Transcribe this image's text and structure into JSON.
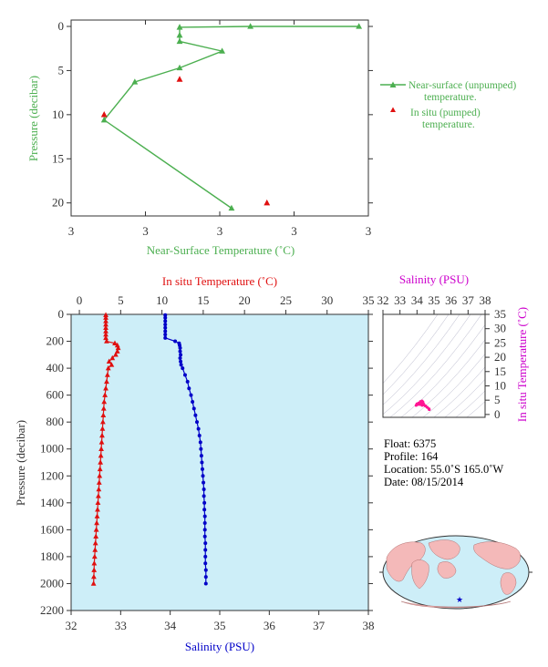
{
  "colors": {
    "green": "#4caf50",
    "red": "#e01010",
    "blue": "#0000c8",
    "magenta": "#cc00cc",
    "panel_fill": "#cdeef8",
    "axis": "#333333"
  },
  "chart_data": [
    {
      "type": "line",
      "title": "",
      "xlabel": "Near-Surface Temperature (˚C)",
      "ylabel": "Pressure (decibar)",
      "x_tick_labels": [
        "3",
        "3",
        "3",
        "3",
        "3"
      ],
      "y_tick_labels": [
        "0",
        "5",
        "10",
        "15",
        "20"
      ],
      "ylim": [
        0,
        22
      ],
      "y_inverted": true,
      "series": [
        {
          "name": "Near-surface (unpumped) temperature.",
          "style": "line-triangle",
          "color": "#4caf50",
          "x": [
            3.007,
            3.0024,
            2.9994,
            2.9994,
            2.9994,
            3.0012,
            2.9994,
            2.9975,
            2.9962,
            3.0016
          ],
          "y": [
            0.0,
            0.0,
            0.1,
            1.0,
            1.7,
            2.8,
            4.7,
            6.3,
            10.6,
            20.6
          ]
        },
        {
          "name": "In situ (pumped) temperature.",
          "style": "triangle",
          "color": "#e01010",
          "x": [
            2.9962,
            2.9994,
            3.0031
          ],
          "y": [
            10.0,
            6.0,
            20.0
          ]
        }
      ],
      "legend": "right"
    },
    {
      "type": "scatter",
      "title": "",
      "top_axis_label": "In situ Temperature (˚C)",
      "bottom_axis_label": "Salinity (PSU)",
      "ylabel": "Pressure (decibar)",
      "temperature_ticks": [
        "0",
        "5",
        "10",
        "15",
        "20",
        "25",
        "30",
        "35"
      ],
      "salinity_ticks": [
        "32",
        "33",
        "34",
        "35",
        "36",
        "37",
        "38"
      ],
      "pressure_ticks": [
        "0",
        "200",
        "400",
        "600",
        "800",
        "1000",
        "1200",
        "1400",
        "1600",
        "1800",
        "2000",
        "2200"
      ],
      "temperature_range": [
        -1,
        35
      ],
      "salinity_range": [
        32,
        38
      ],
      "pressure_range": [
        0,
        2200
      ],
      "y_inverted": true,
      "temperature_profile": {
        "pressure": [
          5,
          25,
          50,
          75,
          100,
          125,
          150,
          175,
          200,
          215,
          230,
          250,
          275,
          300,
          325,
          350,
          375,
          400,
          450,
          500,
          550,
          600,
          650,
          700,
          750,
          800,
          850,
          900,
          950,
          1000,
          1050,
          1100,
          1150,
          1200,
          1250,
          1300,
          1350,
          1400,
          1450,
          1500,
          1550,
          1600,
          1650,
          1700,
          1750,
          1800,
          1850,
          1900,
          1950,
          2000
        ],
        "temperature": [
          3.2,
          3.2,
          3.2,
          3.2,
          3.2,
          3.2,
          3.2,
          3.2,
          3.3,
          4.3,
          4.6,
          4.7,
          4.6,
          4.4,
          4.0,
          3.6,
          3.9,
          3.5,
          3.4,
          3.3,
          3.2,
          3.1,
          3.0,
          2.95,
          2.9,
          2.85,
          2.8,
          2.75,
          2.7,
          2.65,
          2.6,
          2.55,
          2.5,
          2.45,
          2.4,
          2.35,
          2.3,
          2.25,
          2.2,
          2.15,
          2.1,
          2.05,
          2.0,
          1.95,
          1.9,
          1.85,
          1.8,
          1.78,
          1.75,
          1.72
        ]
      },
      "salinity_profile": {
        "pressure": [
          5,
          25,
          50,
          75,
          100,
          125,
          150,
          175,
          200,
          215,
          230,
          250,
          275,
          300,
          325,
          350,
          375,
          400,
          450,
          500,
          550,
          600,
          650,
          700,
          750,
          800,
          850,
          900,
          950,
          1000,
          1050,
          1100,
          1150,
          1200,
          1250,
          1300,
          1350,
          1400,
          1450,
          1500,
          1550,
          1600,
          1650,
          1700,
          1750,
          1800,
          1850,
          1900,
          1950,
          2000
        ],
        "salinity": [
          33.9,
          33.9,
          33.9,
          33.9,
          33.9,
          33.9,
          33.9,
          33.9,
          34.1,
          34.18,
          34.19,
          34.2,
          34.2,
          34.21,
          34.2,
          34.21,
          34.22,
          34.25,
          34.3,
          34.35,
          34.38,
          34.42,
          34.45,
          34.48,
          34.51,
          34.54,
          34.57,
          34.59,
          34.61,
          34.62,
          34.63,
          34.64,
          34.65,
          34.66,
          34.67,
          34.68,
          34.68,
          34.69,
          34.69,
          34.7,
          34.7,
          34.7,
          34.7,
          34.71,
          34.71,
          34.71,
          34.71,
          34.72,
          34.72,
          34.72
        ]
      }
    },
    {
      "type": "scatter",
      "title": "Salinity (PSU)",
      "ylabel": "In situ Temperature (˚C)",
      "x_ticks": [
        "32",
        "33",
        "34",
        "35",
        "36",
        "37",
        "38"
      ],
      "y_ticks": [
        "0",
        "5",
        "10",
        "15",
        "20",
        "25",
        "30",
        "35"
      ],
      "xlim": [
        32,
        38
      ],
      "ylim": [
        -1,
        35
      ],
      "color": "#ff1493",
      "points": [
        {
          "x": 33.95,
          "y": 3.2
        },
        {
          "x": 34.0,
          "y": 3.7
        },
        {
          "x": 34.1,
          "y": 4.0
        },
        {
          "x": 34.2,
          "y": 4.5
        },
        {
          "x": 34.3,
          "y": 4.7
        },
        {
          "x": 34.35,
          "y": 4.3
        },
        {
          "x": 34.4,
          "y": 3.6
        },
        {
          "x": 34.5,
          "y": 3.0
        },
        {
          "x": 34.6,
          "y": 2.5
        },
        {
          "x": 34.7,
          "y": 2.0
        },
        {
          "x": 34.72,
          "y": 1.72
        },
        {
          "x": 34.2,
          "y": 3.8
        },
        {
          "x": 34.3,
          "y": 3.2
        }
      ]
    }
  ],
  "float_info": {
    "float": "Float:  6375",
    "profile": "Profile:  164",
    "location": "Location:  55.0˚S  165.0˚W",
    "date": "Date:  08/15/2014"
  },
  "map": {
    "marker_symbol": "★",
    "marker_color": "#0000c8"
  }
}
